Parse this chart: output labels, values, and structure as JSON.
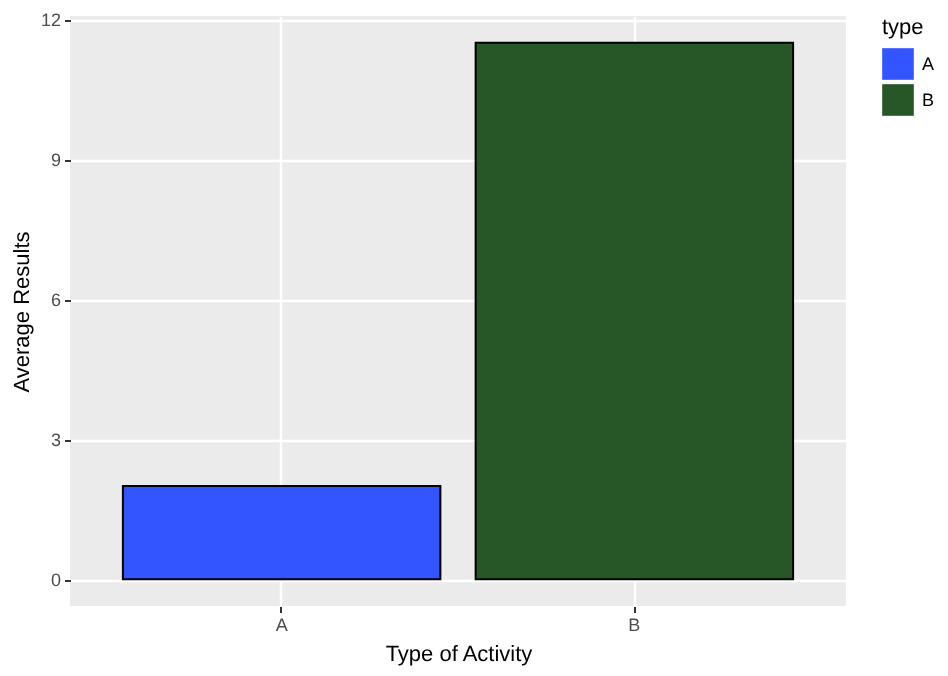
{
  "chart_data": {
    "type": "bar",
    "xlabel": "Type of Activity",
    "ylabel": "Average Results",
    "legend_title": "type",
    "categories": [
      "A",
      "B"
    ],
    "series": [
      {
        "name": "A",
        "color": "#3355ff",
        "values": [
          2,
          null
        ]
      },
      {
        "name": "B",
        "color": "#275627",
        "values": [
          null,
          11.5
        ]
      }
    ],
    "ylim": [
      -0.575,
      12.075
    ],
    "yticks": [
      0,
      3,
      6,
      9,
      12
    ],
    "grid": true,
    "legend": "right"
  }
}
